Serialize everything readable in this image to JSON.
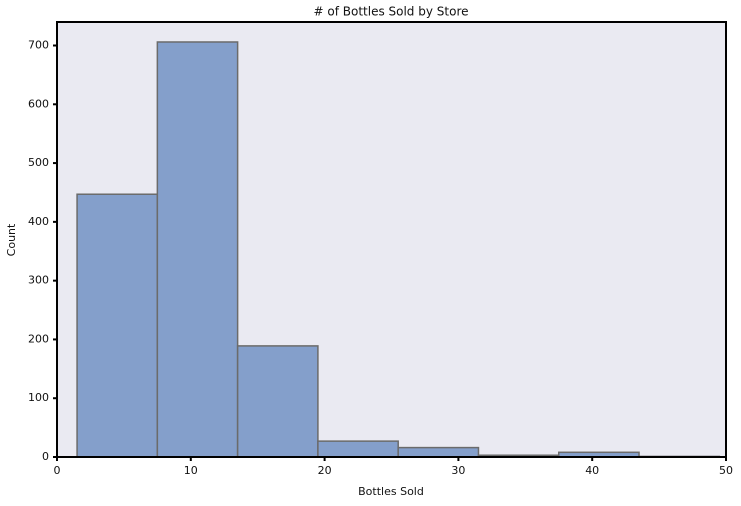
{
  "chart_data": {
    "type": "histogram",
    "title": "# of Bottles Sold by Store",
    "x_label": "Bottles Sold",
    "y_label": "Count",
    "bins": [
      1.5,
      7.5,
      13.5,
      19.5,
      25.5,
      31.5,
      37.5,
      43.5,
      49.5
    ],
    "values": [
      447,
      706,
      189,
      27,
      16,
      3,
      8,
      1
    ],
    "color": "#849fcb",
    "edgecolor": "#6b6b6b",
    "xlim": [
      0,
      50
    ],
    "xticks": [
      0,
      10,
      20,
      30,
      40,
      50
    ],
    "ylim": [
      0,
      740
    ],
    "yticks": [
      0,
      100,
      200,
      300,
      400,
      500,
      600,
      700
    ],
    "grid": false
  }
}
